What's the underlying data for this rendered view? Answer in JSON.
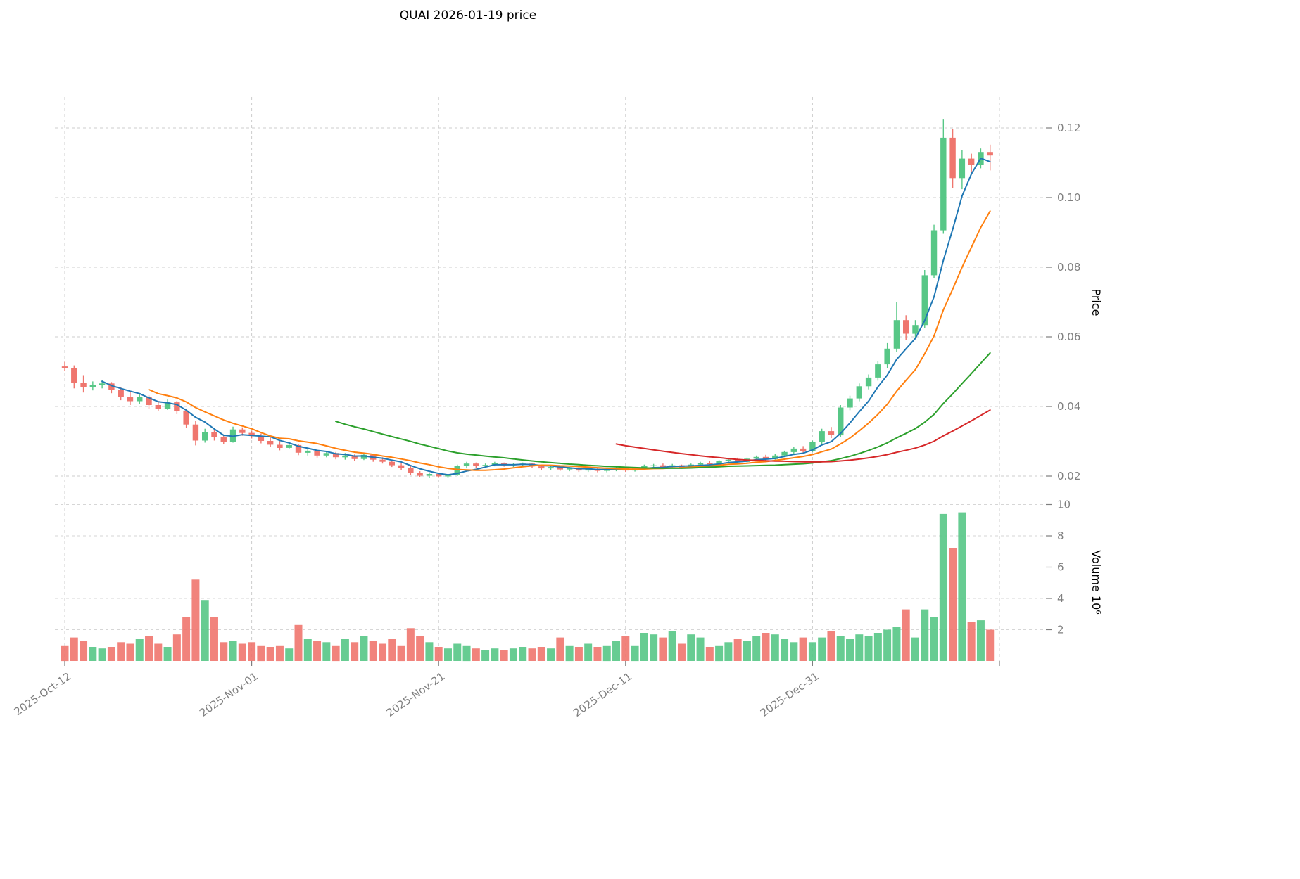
{
  "chart_data": {
    "type": "candlestick",
    "title": "QUAI  2026-01-19  price",
    "price_axis_label": "Price",
    "volume_axis_label": "Volume  10⁶",
    "legend_position": "none",
    "grid": true,
    "price_ticks": [
      0.02,
      0.04,
      0.06,
      0.08,
      0.1,
      0.12
    ],
    "volume_ticks": [
      2,
      4,
      6,
      8,
      10
    ],
    "ylim_price": [
      0.017,
      0.127
    ],
    "ylim_volume": [
      0,
      10.5
    ],
    "x_ticks": [
      {
        "index": 0,
        "label": "2025-Oct-12"
      },
      {
        "index": 20,
        "label": "2025-Nov-01"
      },
      {
        "index": 40,
        "label": "2025-Nov-21"
      },
      {
        "index": 60,
        "label": "2025-Dec-11"
      },
      {
        "index": 80,
        "label": "2025-Dec-31"
      },
      {
        "index": 100,
        "label": ""
      }
    ],
    "moving_averages": [
      {
        "period": 5,
        "color": "#1f77b4"
      },
      {
        "period": 10,
        "color": "#ff7f0e"
      },
      {
        "period": 30,
        "color": "#2ca02c"
      },
      {
        "period": 60,
        "color": "#d62728"
      }
    ],
    "style": {
      "up_color": "#57c786",
      "down_color": "#ef766e",
      "grid_color": "#cccccc",
      "tick_label_color": "#7f7f7f",
      "axis_title_color": "#000000",
      "title_color": "#000000",
      "background": "#ffffff"
    },
    "candles": {
      "columns": [
        "date",
        "open",
        "high",
        "low",
        "close",
        "volume_millions"
      ],
      "rows": [
        [
          "2025-10-12",
          0.0515,
          0.0528,
          0.0502,
          0.051,
          1.0
        ],
        [
          "2025-10-13",
          0.051,
          0.0518,
          0.0452,
          0.0468,
          1.5
        ],
        [
          "2025-10-14",
          0.0468,
          0.049,
          0.044,
          0.0455,
          1.3
        ],
        [
          "2025-10-15",
          0.0455,
          0.0472,
          0.0446,
          0.0462,
          0.9
        ],
        [
          "2025-10-16",
          0.0462,
          0.0476,
          0.0452,
          0.0466,
          0.8
        ],
        [
          "2025-10-17",
          0.0466,
          0.047,
          0.0438,
          0.0448,
          0.9
        ],
        [
          "2025-10-18",
          0.0448,
          0.0455,
          0.0418,
          0.0428,
          1.2
        ],
        [
          "2025-10-19",
          0.0428,
          0.0445,
          0.0404,
          0.0415,
          1.1
        ],
        [
          "2025-10-20",
          0.0415,
          0.0436,
          0.0406,
          0.0428,
          1.4
        ],
        [
          "2025-10-21",
          0.0428,
          0.0432,
          0.0394,
          0.0404,
          1.6
        ],
        [
          "2025-10-22",
          0.0404,
          0.0416,
          0.0386,
          0.0394,
          1.1
        ],
        [
          "2025-10-23",
          0.0394,
          0.042,
          0.039,
          0.0412,
          0.9
        ],
        [
          "2025-10-24",
          0.0412,
          0.0416,
          0.0378,
          0.0388,
          1.7
        ],
        [
          "2025-10-25",
          0.0388,
          0.0394,
          0.0338,
          0.0348,
          2.8
        ],
        [
          "2025-10-26",
          0.0348,
          0.0358,
          0.0288,
          0.0302,
          5.2
        ],
        [
          "2025-10-27",
          0.0302,
          0.0336,
          0.0296,
          0.0326,
          3.9
        ],
        [
          "2025-10-28",
          0.0326,
          0.0332,
          0.0302,
          0.0312,
          2.8
        ],
        [
          "2025-10-29",
          0.0312,
          0.0318,
          0.0292,
          0.0298,
          1.2
        ],
        [
          "2025-10-30",
          0.0298,
          0.0342,
          0.0296,
          0.0334,
          1.3
        ],
        [
          "2025-10-31",
          0.0334,
          0.034,
          0.0316,
          0.0324,
          1.1
        ],
        [
          "2025-11-01",
          0.0324,
          0.033,
          0.0308,
          0.0316,
          1.2
        ],
        [
          "2025-11-02",
          0.0316,
          0.0322,
          0.0294,
          0.0301,
          1.0
        ],
        [
          "2025-11-03",
          0.0301,
          0.031,
          0.0284,
          0.029,
          0.9
        ],
        [
          "2025-11-04",
          0.029,
          0.03,
          0.0274,
          0.0281,
          1.0
        ],
        [
          "2025-11-05",
          0.0281,
          0.0296,
          0.0277,
          0.0289,
          0.8
        ],
        [
          "2025-11-06",
          0.0289,
          0.0292,
          0.026,
          0.0267,
          2.3
        ],
        [
          "2025-11-07",
          0.0267,
          0.0281,
          0.0259,
          0.0273,
          1.4
        ],
        [
          "2025-11-08",
          0.0273,
          0.0276,
          0.0253,
          0.0259,
          1.3
        ],
        [
          "2025-11-09",
          0.0259,
          0.0272,
          0.0254,
          0.0266,
          1.2
        ],
        [
          "2025-11-10",
          0.0266,
          0.0269,
          0.0248,
          0.0254,
          1.0
        ],
        [
          "2025-11-11",
          0.0254,
          0.0266,
          0.0247,
          0.0259,
          1.4
        ],
        [
          "2025-11-12",
          0.0259,
          0.0262,
          0.0244,
          0.0249,
          1.2
        ],
        [
          "2025-11-13",
          0.0249,
          0.0266,
          0.0246,
          0.0261,
          1.6
        ],
        [
          "2025-11-14",
          0.0261,
          0.0264,
          0.0241,
          0.0247,
          1.3
        ],
        [
          "2025-11-15",
          0.0247,
          0.0254,
          0.0236,
          0.0241,
          1.1
        ],
        [
          "2025-11-16",
          0.0241,
          0.0247,
          0.0226,
          0.0231,
          1.4
        ],
        [
          "2025-11-17",
          0.0231,
          0.0237,
          0.0218,
          0.0223,
          1.0
        ],
        [
          "2025-11-18",
          0.0223,
          0.0229,
          0.0204,
          0.0209,
          2.1
        ],
        [
          "2025-11-19",
          0.0209,
          0.0214,
          0.0196,
          0.0201,
          1.6
        ],
        [
          "2025-11-20",
          0.0201,
          0.021,
          0.0194,
          0.0206,
          1.2
        ],
        [
          "2025-11-21",
          0.0206,
          0.0209,
          0.0195,
          0.0199,
          0.9
        ],
        [
          "2025-11-22",
          0.0199,
          0.0206,
          0.0194,
          0.0203,
          0.8
        ],
        [
          "2025-11-23",
          0.0203,
          0.0233,
          0.02,
          0.0229,
          1.1
        ],
        [
          "2025-11-24",
          0.0229,
          0.0241,
          0.0222,
          0.0236,
          1.0
        ],
        [
          "2025-11-25",
          0.0236,
          0.0239,
          0.0224,
          0.0229,
          0.8
        ],
        [
          "2025-11-26",
          0.0229,
          0.0236,
          0.0225,
          0.0232,
          0.7
        ],
        [
          "2025-11-27",
          0.0232,
          0.0241,
          0.0228,
          0.0237,
          0.8
        ],
        [
          "2025-11-28",
          0.0237,
          0.0239,
          0.0227,
          0.0231,
          0.7
        ],
        [
          "2025-11-29",
          0.0231,
          0.0237,
          0.0226,
          0.0234,
          0.8
        ],
        [
          "2025-11-30",
          0.0234,
          0.0239,
          0.0229,
          0.0236,
          0.9
        ],
        [
          "2025-12-01",
          0.0236,
          0.0238,
          0.0224,
          0.0228,
          0.8
        ],
        [
          "2025-12-02",
          0.0228,
          0.0232,
          0.0218,
          0.0222,
          0.9
        ],
        [
          "2025-12-03",
          0.0222,
          0.0229,
          0.0218,
          0.0226,
          0.8
        ],
        [
          "2025-12-04",
          0.0226,
          0.0228,
          0.0215,
          0.0219,
          1.5
        ],
        [
          "2025-12-05",
          0.0219,
          0.0226,
          0.0214,
          0.0223,
          1.0
        ],
        [
          "2025-12-06",
          0.0223,
          0.0225,
          0.0212,
          0.0216,
          0.9
        ],
        [
          "2025-12-07",
          0.0216,
          0.0224,
          0.0212,
          0.0221,
          1.1
        ],
        [
          "2025-12-08",
          0.0221,
          0.0223,
          0.0211,
          0.0215,
          0.9
        ],
        [
          "2025-12-09",
          0.0215,
          0.0222,
          0.0211,
          0.0219,
          1.0
        ],
        [
          "2025-12-10",
          0.0219,
          0.0226,
          0.0214,
          0.0223,
          1.3
        ],
        [
          "2025-12-11",
          0.0223,
          0.0225,
          0.0212,
          0.0216,
          1.6
        ],
        [
          "2025-12-12",
          0.0216,
          0.0226,
          0.0213,
          0.0222,
          1.0
        ],
        [
          "2025-12-13",
          0.0222,
          0.0233,
          0.0219,
          0.0229,
          1.8
        ],
        [
          "2025-12-14",
          0.0229,
          0.0235,
          0.0223,
          0.0231,
          1.7
        ],
        [
          "2025-12-15",
          0.0231,
          0.0236,
          0.0221,
          0.0226,
          1.5
        ],
        [
          "2025-12-16",
          0.0226,
          0.0235,
          0.0222,
          0.0231,
          1.9
        ],
        [
          "2025-12-17",
          0.0231,
          0.0233,
          0.0221,
          0.0225,
          1.1
        ],
        [
          "2025-12-18",
          0.0225,
          0.0236,
          0.0222,
          0.0233,
          1.7
        ],
        [
          "2025-12-19",
          0.0233,
          0.0241,
          0.0228,
          0.0238,
          1.5
        ],
        [
          "2025-12-20",
          0.0238,
          0.0243,
          0.0229,
          0.0234,
          0.9
        ],
        [
          "2025-12-21",
          0.0234,
          0.0246,
          0.0231,
          0.0243,
          1.0
        ],
        [
          "2025-12-22",
          0.0243,
          0.0251,
          0.0238,
          0.0247,
          1.2
        ],
        [
          "2025-12-23",
          0.0247,
          0.0253,
          0.0237,
          0.0241,
          1.4
        ],
        [
          "2025-12-24",
          0.0241,
          0.0253,
          0.0239,
          0.025,
          1.3
        ],
        [
          "2025-12-25",
          0.025,
          0.0259,
          0.0245,
          0.0255,
          1.6
        ],
        [
          "2025-12-26",
          0.0255,
          0.0261,
          0.0245,
          0.0249,
          1.8
        ],
        [
          "2025-12-27",
          0.0249,
          0.0263,
          0.0247,
          0.0259,
          1.7
        ],
        [
          "2025-12-28",
          0.0259,
          0.0273,
          0.0255,
          0.0269,
          1.4
        ],
        [
          "2025-12-29",
          0.0269,
          0.0283,
          0.0264,
          0.0279,
          1.2
        ],
        [
          "2025-12-30",
          0.0279,
          0.0286,
          0.0267,
          0.0272,
          1.5
        ],
        [
          "2025-12-31",
          0.0272,
          0.0302,
          0.0269,
          0.0297,
          1.2
        ],
        [
          "2026-01-01",
          0.0297,
          0.0336,
          0.0292,
          0.0329,
          1.5
        ],
        [
          "2026-01-02",
          0.0329,
          0.0341,
          0.0309,
          0.0317,
          1.9
        ],
        [
          "2026-01-03",
          0.0317,
          0.0404,
          0.0313,
          0.0397,
          1.6
        ],
        [
          "2026-01-04",
          0.0397,
          0.0431,
          0.0389,
          0.0423,
          1.4
        ],
        [
          "2026-01-05",
          0.0423,
          0.0466,
          0.0415,
          0.0458,
          1.7
        ],
        [
          "2026-01-06",
          0.0458,
          0.0492,
          0.0449,
          0.0483,
          1.6
        ],
        [
          "2026-01-07",
          0.0483,
          0.0531,
          0.0474,
          0.0521,
          1.8
        ],
        [
          "2026-01-08",
          0.0521,
          0.0582,
          0.0511,
          0.0566,
          2.0
        ],
        [
          "2026-01-09",
          0.0566,
          0.0701,
          0.0556,
          0.0648,
          2.2
        ],
        [
          "2026-01-10",
          0.0648,
          0.0662,
          0.0592,
          0.0609,
          3.3
        ],
        [
          "2026-01-11",
          0.0609,
          0.0648,
          0.0598,
          0.0634,
          1.5
        ],
        [
          "2026-01-12",
          0.0634,
          0.0792,
          0.0626,
          0.0777,
          3.3
        ],
        [
          "2026-01-13",
          0.0777,
          0.0922,
          0.0768,
          0.0906,
          2.8
        ],
        [
          "2026-01-14",
          0.0906,
          0.1226,
          0.0896,
          0.1172,
          9.4
        ],
        [
          "2026-01-15",
          0.1172,
          0.1198,
          0.1028,
          0.1056,
          7.2
        ],
        [
          "2026-01-16",
          0.1056,
          0.1136,
          0.1024,
          0.1112,
          9.5
        ],
        [
          "2026-01-17",
          0.1112,
          0.1126,
          0.1068,
          0.1094,
          2.5
        ],
        [
          "2026-01-18",
          0.1094,
          0.1141,
          0.1084,
          0.1131,
          2.6
        ],
        [
          "2026-01-19",
          0.1131,
          0.1152,
          0.1078,
          0.1121,
          2.0
        ]
      ]
    }
  }
}
